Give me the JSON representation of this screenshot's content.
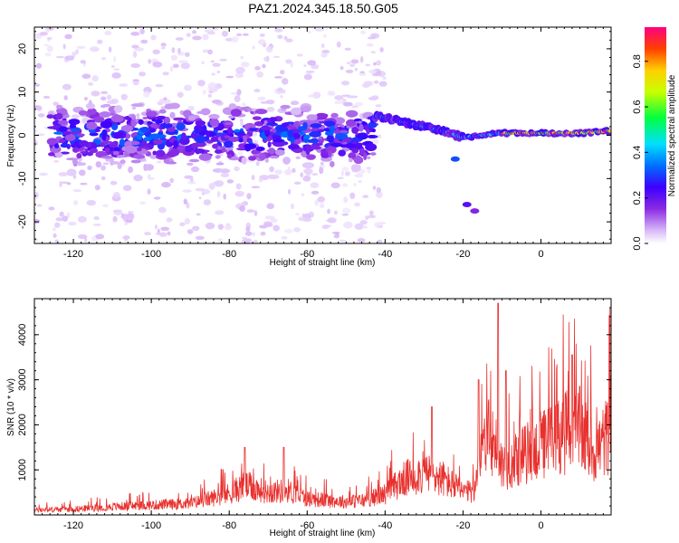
{
  "figure_title": "PAZ1.2024.345.18.50.G05",
  "chart_data": [
    {
      "type": "heatmap",
      "xlabel": "Height of straight line (km)",
      "ylabel": "Frequency (Hz)",
      "xlim": [
        -130,
        18
      ],
      "ylim": [
        -25,
        25
      ],
      "xticks": [
        -120,
        -100,
        -80,
        -60,
        -40,
        -20,
        0
      ],
      "yticks": [
        -20,
        -10,
        0,
        10,
        20
      ],
      "grid": false,
      "colorbar": {
        "label": "Normalized spectral amplitude",
        "range": [
          0,
          0.95
        ],
        "ticks": [
          0.0,
          0.2,
          0.4,
          0.6,
          0.8
        ],
        "colormap": [
          "#ffffff",
          "#d8b8f8",
          "#8a2be2",
          "#3c00ff",
          "#0070ff",
          "#00e0ff",
          "#00ff40",
          "#c8ff00",
          "#ffd000",
          "#ff4000",
          "#ff0080"
        ]
      },
      "ridge": [
        {
          "x": -125,
          "f": 0.0
        },
        {
          "x": -110,
          "f": 0.5
        },
        {
          "x": -90,
          "f": 0.5
        },
        {
          "x": -70,
          "f": 0.5
        },
        {
          "x": -50,
          "f": -0.5
        },
        {
          "x": -42,
          "f": 4.5
        },
        {
          "x": -35,
          "f": 3.0
        },
        {
          "x": -25,
          "f": 1.0
        },
        {
          "x": -20,
          "f": -0.5
        },
        {
          "x": -10,
          "f": 0.5
        },
        {
          "x": 0,
          "f": 0.5
        },
        {
          "x": 10,
          "f": 0.5
        },
        {
          "x": 18,
          "f": 1.0
        }
      ],
      "peak_regions": [
        {
          "x_from": -10,
          "x_to": 15,
          "f": 0.5,
          "amplitude": 0.95
        },
        {
          "x_from": -42,
          "x_to": -20,
          "f_from": 4.5,
          "f_to": 0.0,
          "amplitude": 0.45
        },
        {
          "x_from": -125,
          "x_to": -45,
          "f": 0.0,
          "amplitude": 0.3
        }
      ]
    },
    {
      "type": "line",
      "xlabel": "Height of straight line (km)",
      "ylabel": "SNR (10 * v/v)",
      "xlim": [
        -130,
        18
      ],
      "ylim": [
        0,
        4800
      ],
      "xticks": [
        -120,
        -100,
        -80,
        -60,
        -40,
        -20,
        0
      ],
      "yticks": [
        1000,
        2000,
        3000,
        4000
      ],
      "grid": false,
      "color": "#e8312e",
      "envelope": [
        {
          "x": -130,
          "snr": 150
        },
        {
          "x": -120,
          "snr": 180
        },
        {
          "x": -110,
          "snr": 250
        },
        {
          "x": -100,
          "snr": 300
        },
        {
          "x": -90,
          "snr": 350
        },
        {
          "x": -80,
          "snr": 650
        },
        {
          "x": -76,
          "snr": 900
        },
        {
          "x": -70,
          "snr": 700
        },
        {
          "x": -65,
          "snr": 750
        },
        {
          "x": -60,
          "snr": 500
        },
        {
          "x": -55,
          "snr": 450
        },
        {
          "x": -50,
          "snr": 400
        },
        {
          "x": -45,
          "snr": 450
        },
        {
          "x": -40,
          "snr": 650
        },
        {
          "x": -35,
          "snr": 1100
        },
        {
          "x": -30,
          "snr": 1300
        },
        {
          "x": -25,
          "snr": 1100
        },
        {
          "x": -20,
          "snr": 700
        },
        {
          "x": -17,
          "snr": 700
        },
        {
          "x": -15,
          "snr": 2500
        },
        {
          "x": -12,
          "snr": 2200
        },
        {
          "x": -10,
          "snr": 1500
        },
        {
          "x": -5,
          "snr": 1800
        },
        {
          "x": 0,
          "snr": 2100
        },
        {
          "x": 5,
          "snr": 2500
        },
        {
          "x": 10,
          "snr": 2600
        },
        {
          "x": 14,
          "snr": 1900
        },
        {
          "x": 18,
          "snr": 2600
        }
      ],
      "spikes": [
        {
          "x": -76,
          "snr": 1500
        },
        {
          "x": -66,
          "snr": 1500
        },
        {
          "x": -28,
          "snr": 2400
        },
        {
          "x": -16,
          "snr": 3000
        },
        {
          "x": -11,
          "snr": 4700
        },
        {
          "x": -9,
          "snr": 3200
        },
        {
          "x": 8,
          "snr": 3550
        },
        {
          "x": 18,
          "snr": 3100
        }
      ]
    }
  ]
}
